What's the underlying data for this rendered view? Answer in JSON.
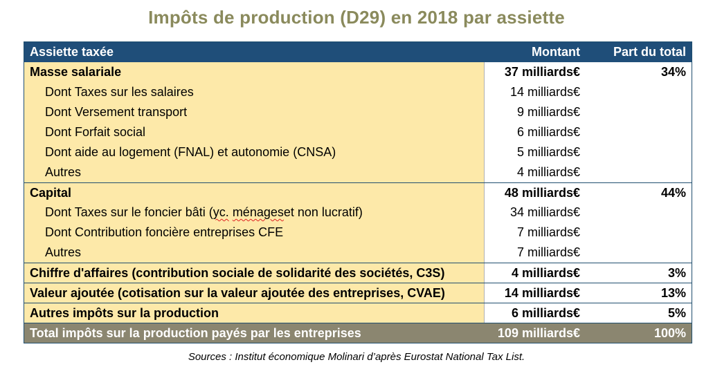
{
  "title": "Impôts de production (D29) en 2018 par assiette",
  "header": {
    "col1": "Assiette taxée",
    "col2": "Montant",
    "col3": "Part du total"
  },
  "rows": [
    {
      "label": "Masse salariale",
      "amount": "37 milliards€",
      "share": "34%"
    },
    {
      "label": "Dont Taxes sur les salaires",
      "amount": "14 milliards€",
      "share": ""
    },
    {
      "label": "Dont Versement transport",
      "amount": "9 milliards€",
      "share": ""
    },
    {
      "label": "Dont Forfait social",
      "amount": "6 milliards€",
      "share": ""
    },
    {
      "label": "Dont aide au logement (FNAL) et autonomie (CNSA)",
      "amount": "5 milliards€",
      "share": ""
    },
    {
      "label": "Autres",
      "amount": "4 milliards€",
      "share": ""
    },
    {
      "label": "Capital",
      "amount": "48 milliards€",
      "share": "44%"
    },
    {
      "label_prefix": "Dont Taxes sur le foncier bâti (",
      "label_spell1": "yc.",
      "label_mid": " ",
      "label_spell2": "ménages",
      "label_suffix": " et non lucratif)",
      "amount": "34 milliards€",
      "share": ""
    },
    {
      "label": "Dont Contribution foncière entreprises CFE",
      "amount": "7 milliards€",
      "share": ""
    },
    {
      "label": "Autres",
      "amount": "7 milliards€",
      "share": ""
    },
    {
      "label": "Chiffre d'affaires (contribution sociale de solidarité des sociétés, C3S)",
      "amount": "4 milliards€",
      "share": "3%"
    },
    {
      "label": "Valeur ajoutée (cotisation sur la valeur ajoutée des entreprises, CVAE)",
      "amount": "14 milliards€",
      "share": "13%"
    },
    {
      "label": "Autres impôts sur la production",
      "amount": "6 milliards€",
      "share": "5%"
    }
  ],
  "total": {
    "label": "Total impôts sur la production payés par les entreprises",
    "amount": "109 milliards€",
    "share": "100%"
  },
  "source": "Sources : Institut économique Molinari d’après Eurostat National Tax List.",
  "colors": {
    "header_bg": "#1f4e79",
    "label_bg": "#fde9a9",
    "total_bg": "#8b8670",
    "title_color": "#8a8a5c"
  }
}
